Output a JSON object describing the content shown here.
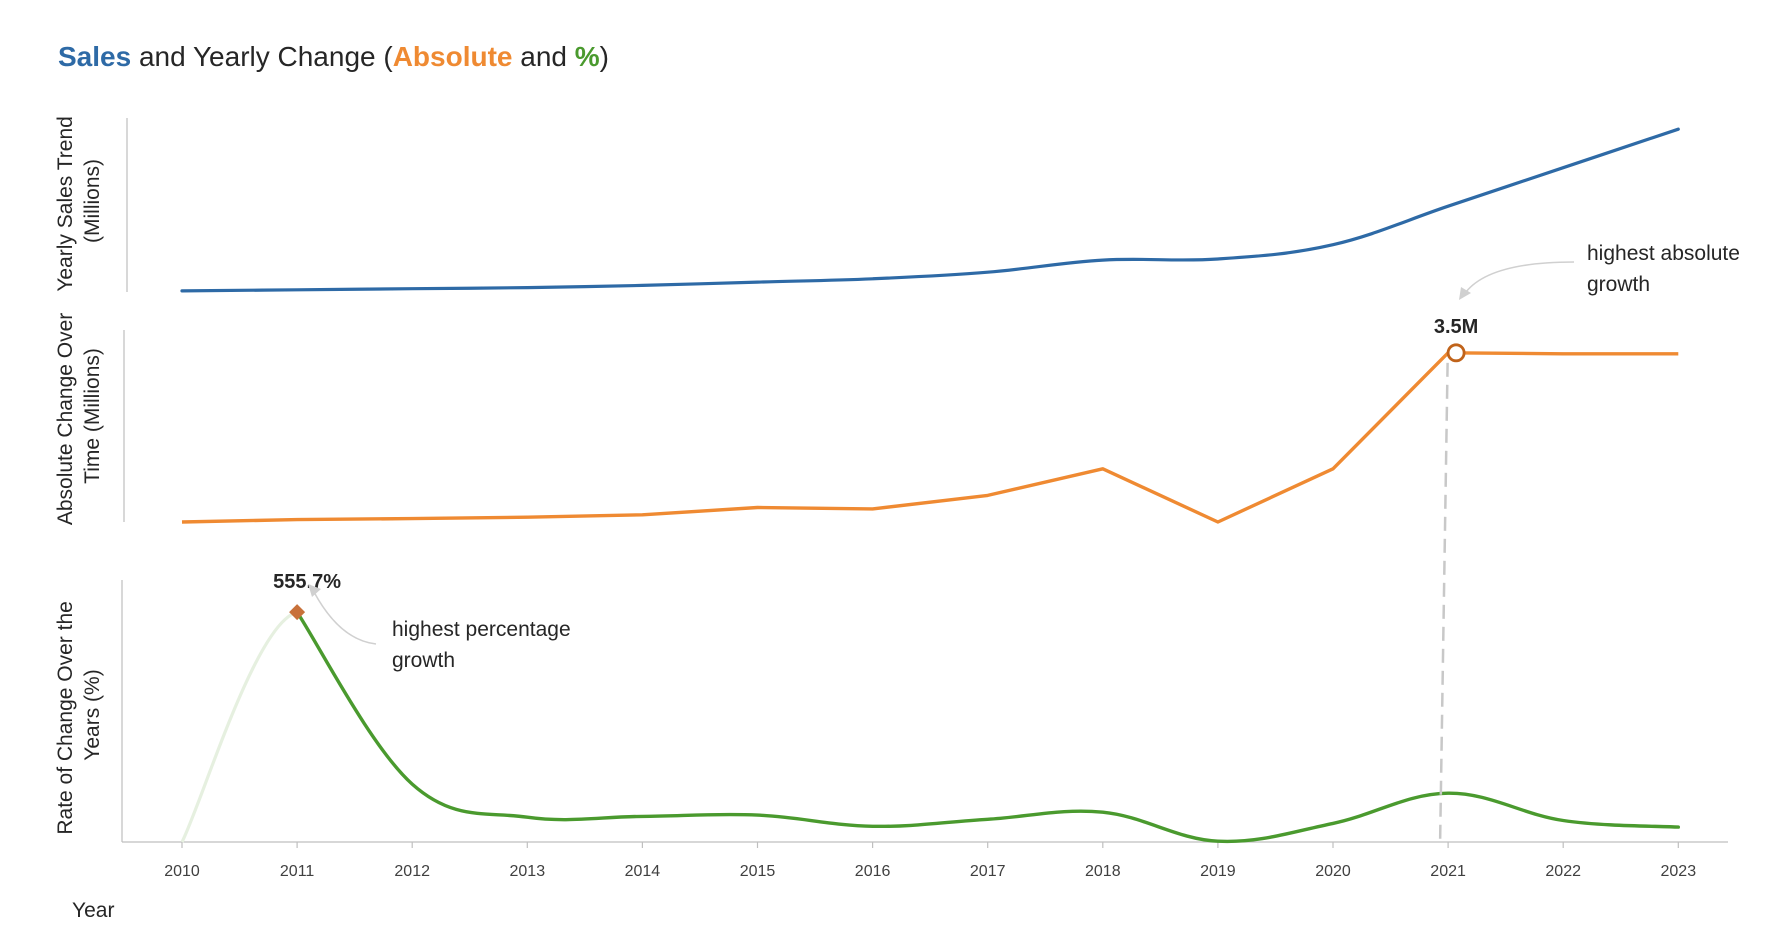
{
  "title": {
    "part1": "Sales",
    "part2": " and Yearly Change (",
    "part3": "Absolute",
    "part4": " and ",
    "part5": "%",
    "part6": ")"
  },
  "colors": {
    "sales": "#2e6aa6",
    "absolute": "#ef8a32",
    "percent": "#4a9a2e",
    "percent_faded": "#e6f0e0",
    "marker_diamond": "#c8713a",
    "marker_circle": "#c0631a",
    "axis": "#bfbfbf",
    "text": "#262626",
    "annotation_arrow": "#d0d0d0",
    "dashed_line": "#c8c8c8"
  },
  "panels": {
    "sales": {
      "ylabel_line1": "Yearly Sales Trend",
      "ylabel_line2": "(Millions)"
    },
    "absolute": {
      "ylabel_line1": "Absolute Change Over",
      "ylabel_line2": "Time (Millions)"
    },
    "percent": {
      "ylabel_line1": "Rate of Change Over the",
      "ylabel_line2": "Years (%)"
    }
  },
  "xlabel": "Year",
  "annotations": {
    "absolute": {
      "value": "3.5M",
      "line1": "highest absolute",
      "line2": "growth"
    },
    "percent": {
      "value": "555.7%",
      "line1": "highest percentage",
      "line2": "growth"
    }
  },
  "chart_data": [
    {
      "type": "line",
      "name": "Sales",
      "x": [
        2010,
        2011,
        2012,
        2013,
        2014,
        2015,
        2016,
        2017,
        2018,
        2019,
        2020,
        2021,
        2022,
        2023
      ],
      "values": [
        0.1,
        0.2,
        0.3,
        0.4,
        0.6,
        0.9,
        1.2,
        1.8,
        2.9,
        3.0,
        4.3,
        7.8,
        11.3,
        14.8
      ],
      "ylim": [
        0,
        16
      ],
      "ylabel": "Yearly Sales Trend (Millions)"
    },
    {
      "type": "line",
      "name": "Absolute",
      "x": [
        2010,
        2011,
        2012,
        2013,
        2014,
        2015,
        2016,
        2017,
        2018,
        2019,
        2020,
        2021,
        2022,
        2023
      ],
      "values": [
        0.0,
        0.05,
        0.07,
        0.1,
        0.15,
        0.3,
        0.27,
        0.55,
        1.1,
        0.0,
        1.1,
        3.5,
        3.48,
        3.48
      ],
      "ylim": [
        0,
        3.6
      ],
      "ylabel": "Absolute Change Over Time (Millions)",
      "highlight": {
        "x": 2021,
        "value": 3.5,
        "label": "3.5M"
      }
    },
    {
      "type": "line",
      "name": "%",
      "x": [
        2010,
        2011,
        2012,
        2013,
        2014,
        2015,
        2016,
        2017,
        2018,
        2019,
        2020,
        2021,
        2022,
        2023
      ],
      "values": [
        0,
        555.7,
        140,
        60,
        62,
        65,
        38,
        55,
        72,
        2,
        45,
        118,
        52,
        36
      ],
      "ylim": [
        0,
        590
      ],
      "ylabel": "Rate of Change Over the Years (%)",
      "highlight": {
        "x": 2011,
        "value": 555.7,
        "label": "555.7%"
      }
    }
  ],
  "x_ticks": [
    "2010",
    "2011",
    "2012",
    "2013",
    "2014",
    "2015",
    "2016",
    "2017",
    "2018",
    "2019",
    "2020",
    "2021",
    "2022",
    "2023"
  ]
}
